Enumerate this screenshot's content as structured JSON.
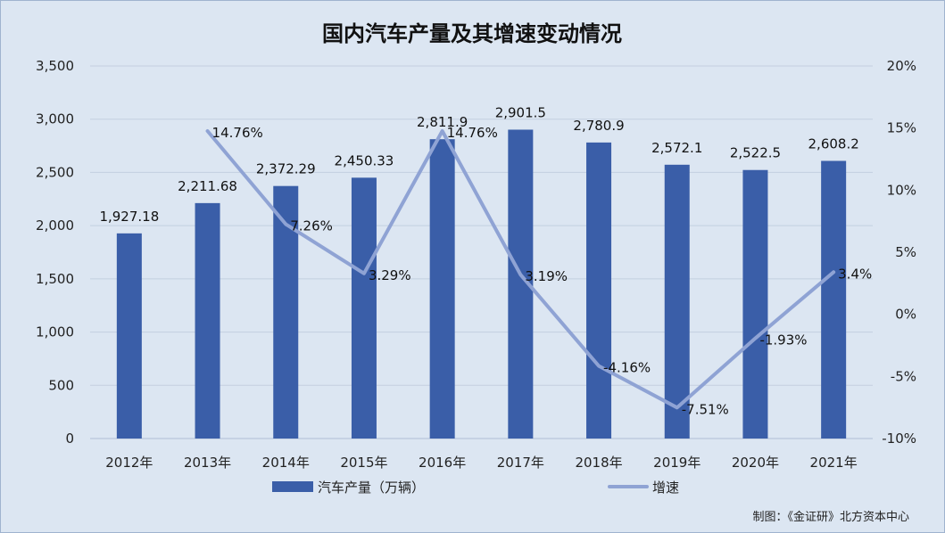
{
  "chart_data": {
    "type": "bar+line",
    "title": "国内汽车产量及其增速变动情况",
    "categories": [
      "2012年",
      "2013年",
      "2014年",
      "2015年",
      "2016年",
      "2017年",
      "2018年",
      "2019年",
      "2020年",
      "2021年"
    ],
    "series": [
      {
        "name": "汽车产量（万辆）",
        "type": "bar",
        "axis": "left",
        "color": "#3a5ea8",
        "values": [
          1927.18,
          2211.68,
          2372.29,
          2450.33,
          2811.9,
          2901.5,
          2780.9,
          2572.1,
          2522.5,
          2608.2
        ],
        "labels": [
          "1,927.18",
          "2,211.68",
          "2,372.29",
          "2,450.33",
          "2,811.9",
          "2,901.5",
          "2,780.9",
          "2,572.1",
          "2,522.5",
          "2,608.2"
        ]
      },
      {
        "name": "增速",
        "type": "line",
        "axis": "right",
        "color": "#8fa3d4",
        "values": [
          null,
          14.76,
          7.26,
          3.29,
          14.76,
          3.19,
          -4.16,
          -7.51,
          -1.93,
          3.4
        ],
        "labels": [
          "",
          "14.76%",
          "7.26%",
          "3.29%",
          "14.76%",
          "3.19%",
          "-4.16%",
          "-7.51%",
          "-1.93%",
          "3.4%"
        ]
      }
    ],
    "y_left": {
      "ylim": [
        0,
        3500
      ],
      "ticks": [
        "0",
        "500",
        "1,000",
        "1,500",
        "2,000",
        "2,500",
        "3,000",
        "3,500"
      ]
    },
    "y_right": {
      "ylim": [
        -10,
        20
      ],
      "ticks": [
        "-10%",
        "-5%",
        "0%",
        "5%",
        "10%",
        "15%",
        "20%"
      ]
    },
    "grid": true,
    "legend_position": "bottom",
    "source": "制图：《金证研》北方资本中心"
  }
}
